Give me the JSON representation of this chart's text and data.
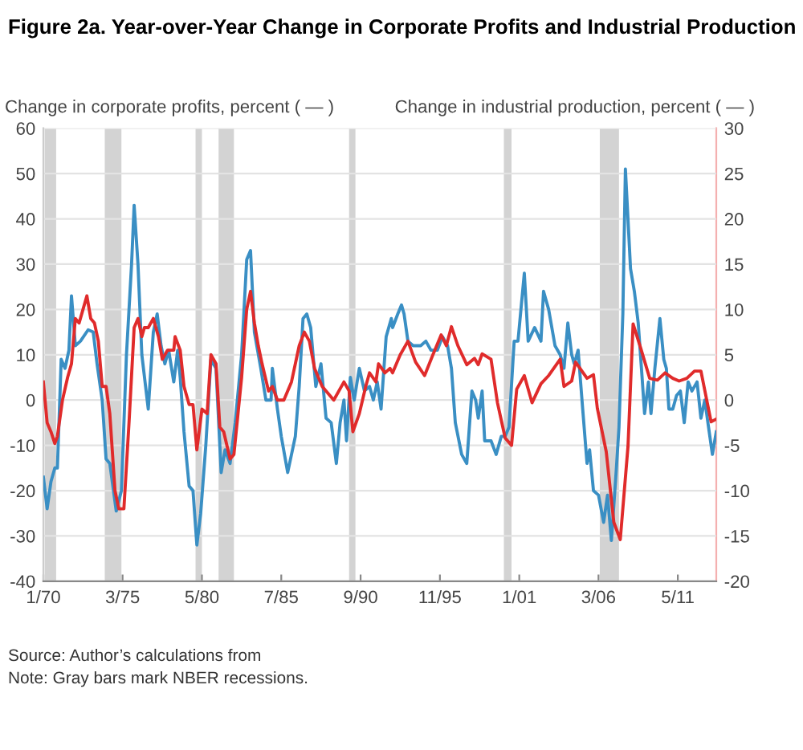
{
  "chart_data": {
    "type": "line",
    "title": "Figure 2a. Year-over-Year Change in Corporate Profits and Industrial Production",
    "ylabel": "Change in corporate profits, percent ( — )",
    "y2label": "Change in industrial production, percent ( — )",
    "xlim": [
      "1970-01",
      "2013-11"
    ],
    "xticks": [
      {
        "value": "1970-01",
        "label": "1/70"
      },
      {
        "value": "1975-03",
        "label": "3/75"
      },
      {
        "value": "1980-05",
        "label": "5/80"
      },
      {
        "value": "1985-07",
        "label": "7/85"
      },
      {
        "value": "1990-09",
        "label": "9/90"
      },
      {
        "value": "1995-11",
        "label": "11/95"
      },
      {
        "value": "2001-01",
        "label": "1/01"
      },
      {
        "value": "2006-03",
        "label": "3/06"
      },
      {
        "value": "2011-05",
        "label": "5/11"
      }
    ],
    "ylim": [
      -40,
      60
    ],
    "yticks": [
      -40,
      -30,
      -20,
      -10,
      0,
      10,
      20,
      30,
      40,
      50,
      60
    ],
    "y2lim": [
      -20,
      30
    ],
    "y2ticks": [
      -20,
      -15,
      -10,
      -5,
      0,
      5,
      10,
      15,
      20,
      25,
      30
    ],
    "grid": "y",
    "series": [
      {
        "color": "#3a8fc4",
        "x": [
          "1970-01",
          "1970-04",
          "1970-07",
          "1970-10",
          "1970-12",
          "1971-03",
          "1971-06",
          "1971-09",
          "1971-11",
          "1972-02",
          "1972-06",
          "1972-12",
          "1973-04",
          "1973-07",
          "1973-11",
          "1974-02",
          "1974-05",
          "1974-10",
          "1975-02",
          "1975-06",
          "1975-10",
          "1975-12",
          "1976-03",
          "1976-06",
          "1976-11",
          "1977-03",
          "1977-06",
          "1977-09",
          "1977-12",
          "1978-03",
          "1978-07",
          "1978-10",
          "1978-12",
          "1979-03",
          "1979-07",
          "1979-10",
          "1980-01",
          "1980-04",
          "1980-08",
          "1980-12",
          "1981-04",
          "1981-08",
          "1981-11",
          "1982-03",
          "1982-07",
          "1982-12",
          "1983-04",
          "1983-07",
          "1983-10",
          "1984-03",
          "1984-07",
          "1984-11",
          "1984-12",
          "1985-04",
          "1985-07",
          "1985-12",
          "1986-06",
          "1986-09",
          "1986-12",
          "1987-03",
          "1987-06",
          "1987-10",
          "1988-02",
          "1988-06",
          "1988-10",
          "1989-02",
          "1989-05",
          "1989-08",
          "1989-10",
          "1990-01",
          "1990-04",
          "1990-08",
          "1990-12",
          "1991-04",
          "1991-07",
          "1991-10",
          "1992-01",
          "1992-05",
          "1992-09",
          "1992-10",
          "1993-02",
          "1993-05",
          "1993-07",
          "1993-10",
          "1994-02",
          "1994-08",
          "1994-12",
          "1995-04",
          "1995-09",
          "1996-01",
          "1996-05",
          "1996-08",
          "1996-11",
          "1997-04",
          "1997-08",
          "1997-12",
          "1998-03",
          "1998-05",
          "1998-08",
          "1998-10",
          "1999-03",
          "1999-07",
          "1999-11",
          "2000-02",
          "2000-05",
          "2000-09",
          "2000-12",
          "2001-05",
          "2001-08",
          "2002-01",
          "2002-06",
          "2002-08",
          "2002-12",
          "2003-05",
          "2003-09",
          "2003-12",
          "2004-03",
          "2004-06",
          "2004-08",
          "2004-11",
          "2005-02",
          "2005-06",
          "2005-08",
          "2005-11",
          "2006-03",
          "2006-07",
          "2006-10",
          "2007-01",
          "2007-05",
          "2007-07",
          "2007-10",
          "2007-12",
          "2008-04",
          "2008-07",
          "2008-10",
          "2009-01",
          "2009-03",
          "2009-06",
          "2009-08",
          "2009-11",
          "2010-03",
          "2010-06",
          "2010-08",
          "2010-10",
          "2011-01",
          "2011-04",
          "2011-07",
          "2011-10",
          "2012-01",
          "2012-04",
          "2012-08",
          "2012-11",
          "2013-02",
          "2013-05",
          "2013-08",
          "2013-11"
        ],
        "values": [
          -17,
          -24,
          -18,
          -15,
          -15,
          9,
          7,
          11,
          23,
          12,
          13,
          15.5,
          15,
          8,
          0,
          -13,
          -14,
          -24.5,
          -20,
          10,
          30,
          43,
          30,
          10,
          -2,
          15,
          19,
          12,
          8,
          11,
          4,
          11,
          5,
          -7,
          -19,
          -20,
          -32,
          -25,
          -10,
          9,
          7,
          -16,
          -11,
          -14,
          -5,
          10,
          31,
          33,
          15,
          7,
          0,
          0,
          7,
          -2,
          -8,
          -16,
          -8,
          3,
          18,
          19,
          16,
          3,
          8,
          -4,
          -5,
          -14,
          -5,
          0,
          -9,
          5,
          0,
          7,
          2,
          3,
          0,
          4,
          -2,
          14,
          18,
          16,
          19,
          21,
          19,
          13,
          12,
          12,
          13,
          11,
          11,
          14,
          12,
          7,
          -5,
          -12,
          -14,
          2,
          0,
          -4,
          2,
          -9,
          -9,
          -12,
          -8,
          -8,
          -6,
          13,
          13,
          28,
          13,
          16,
          13,
          24,
          20,
          12,
          10,
          7,
          17,
          10,
          8,
          11,
          0,
          -14,
          -11,
          -20,
          -21,
          -27,
          -21,
          -31,
          -15,
          -6,
          19,
          51,
          29,
          24,
          17,
          5,
          -3,
          4,
          -3,
          7,
          18,
          9,
          7,
          -2,
          -2,
          1,
          2,
          -5,
          4,
          2,
          4,
          -4,
          0,
          -6,
          -12,
          -7
        ]
      },
      {
        "color": "#e02b2b",
        "axis": "y2",
        "x": [
          "1970-01",
          "1970-04",
          "1970-07",
          "1970-10",
          "1970-12",
          "1971-04",
          "1971-08",
          "1971-11",
          "1972-02",
          "1972-05",
          "1972-08",
          "1972-11",
          "1973-02",
          "1973-05",
          "1973-08",
          "1973-11",
          "1974-02",
          "1974-05",
          "1974-09",
          "1974-12",
          "1975-04",
          "1975-08",
          "1975-12",
          "1976-03",
          "1976-06",
          "1976-08",
          "1976-11",
          "1977-03",
          "1977-07",
          "1977-10",
          "1978-02",
          "1978-07",
          "1978-08",
          "1978-12",
          "1979-03",
          "1979-07",
          "1979-10",
          "1980-01",
          "1980-05",
          "1980-09",
          "1980-12",
          "1981-04",
          "1981-07",
          "1981-10",
          "1982-03",
          "1982-06",
          "1982-12",
          "1983-04",
          "1983-07",
          "1983-10",
          "1984-01",
          "1984-04",
          "1984-09",
          "1984-12",
          "1985-04",
          "1985-09",
          "1986-03",
          "1986-09",
          "1987-01",
          "1987-05",
          "1987-09",
          "1988-03",
          "1988-12",
          "1989-08",
          "1989-12",
          "1990-03",
          "1990-08",
          "1991-01",
          "1991-04",
          "1991-09",
          "1991-11",
          "1992-04",
          "1992-08",
          "1992-10",
          "1993-04",
          "1993-10",
          "1994-04",
          "1994-11",
          "1995-05",
          "1995-12",
          "1996-04",
          "1996-08",
          "1997-01",
          "1997-08",
          "1998-02",
          "1998-05",
          "1998-08",
          "1999-03",
          "1999-08",
          "2000-02",
          "2000-07",
          "2000-11",
          "2001-05",
          "2001-11",
          "2002-06",
          "2002-12",
          "2003-09",
          "2003-12",
          "2004-06",
          "2004-09",
          "2005-06",
          "2005-11",
          "2006-02",
          "2006-09",
          "2007-03",
          "2007-08",
          "2008-02",
          "2008-06",
          "2008-12",
          "2009-07",
          "2010-01",
          "2010-07",
          "2011-01",
          "2011-06",
          "2011-12",
          "2012-06",
          "2012-11",
          "2013-04",
          "2013-07",
          "2013-11"
        ],
        "values": [
          2,
          -2.5,
          -3.5,
          -4.8,
          -4,
          0,
          2.5,
          4,
          9,
          8.5,
          10,
          11.5,
          9,
          8.5,
          6.5,
          1.5,
          1.5,
          -1.5,
          -10,
          -12,
          -12,
          -2.5,
          8,
          9,
          7,
          8,
          8,
          9,
          7,
          4.5,
          5.5,
          5.5,
          7,
          5.5,
          1.5,
          -0.5,
          -0.5,
          -5.5,
          -1,
          -1.5,
          5,
          4,
          -3,
          -3.5,
          -6.5,
          -6,
          2.5,
          10,
          12,
          8.5,
          6,
          4,
          1,
          1.5,
          0,
          0,
          2,
          6,
          7.5,
          6.5,
          3.5,
          1.5,
          0,
          2,
          1,
          -3.5,
          -1.5,
          1.5,
          3,
          2,
          4,
          3,
          3.5,
          3,
          5,
          6.5,
          4.2,
          2.7,
          4.8,
          7.2,
          6,
          8.1,
          6,
          3.9,
          4.6,
          3.9,
          5.1,
          4.5,
          -0.3,
          -4.2,
          -5,
          1.2,
          2.7,
          -0.3,
          1.8,
          2.7,
          4.5,
          1.5,
          2.1,
          4.2,
          2.4,
          2.8,
          -0.9,
          -5.7,
          -13.5,
          -15.4,
          -5.1,
          8.4,
          5.7,
          2.4,
          2.2,
          3,
          2.4,
          2.1,
          2.4,
          3.2,
          3.2,
          -0.3,
          -2.4,
          -2.1
        ]
      }
    ],
    "bands": [
      {
        "axis": "x",
        "from": "1970-02",
        "to": "1970-11",
        "color": "#d3d3d3"
      },
      {
        "axis": "x",
        "from": "1974-01",
        "to": "1975-02",
        "color": "#d3d3d3"
      },
      {
        "axis": "x",
        "from": "1979-12",
        "to": "1980-05",
        "color": "#d3d3d3"
      },
      {
        "axis": "x",
        "from": "1981-06",
        "to": "1982-06",
        "color": "#d3d3d3"
      },
      {
        "axis": "x",
        "from": "1989-12",
        "to": "1990-05",
        "color": "#d3d3d3"
      },
      {
        "axis": "x",
        "from": "2000-01",
        "to": "2000-07",
        "color": "#d3d3d3"
      },
      {
        "axis": "x",
        "from": "2006-04",
        "to": "2007-07",
        "color": "#d3d3d3"
      }
    ],
    "annotations": [
      "Source: Author’s calculations from",
      "Note: Gray bars mark NBER recessions."
    ]
  }
}
